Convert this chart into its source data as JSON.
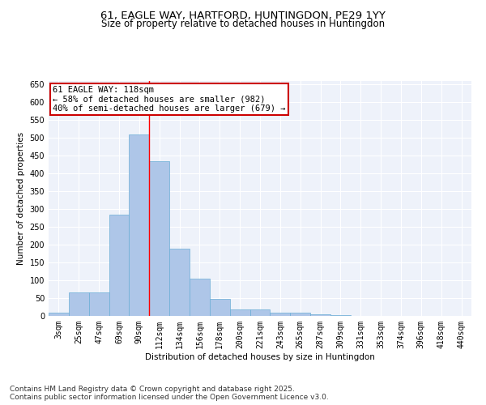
{
  "title": "61, EAGLE WAY, HARTFORD, HUNTINGDON, PE29 1YY",
  "subtitle": "Size of property relative to detached houses in Huntingdon",
  "xlabel": "Distribution of detached houses by size in Huntingdon",
  "ylabel": "Number of detached properties",
  "categories": [
    "3sqm",
    "25sqm",
    "47sqm",
    "69sqm",
    "90sqm",
    "112sqm",
    "134sqm",
    "156sqm",
    "178sqm",
    "200sqm",
    "221sqm",
    "243sqm",
    "265sqm",
    "287sqm",
    "309sqm",
    "331sqm",
    "353sqm",
    "374sqm",
    "396sqm",
    "418sqm",
    "440sqm"
  ],
  "values": [
    8,
    65,
    65,
    285,
    510,
    435,
    190,
    105,
    47,
    18,
    18,
    8,
    8,
    5,
    2,
    1,
    1,
    0,
    0,
    0,
    0
  ],
  "bar_color": "#aec6e8",
  "bar_edge_color": "#6aaed6",
  "red_line_index": 4,
  "annotation_text": "61 EAGLE WAY: 118sqm\n← 58% of detached houses are smaller (982)\n40% of semi-detached houses are larger (679) →",
  "annotation_box_color": "#ffffff",
  "annotation_box_edge": "#cc0000",
  "ylim": [
    0,
    660
  ],
  "yticks": [
    0,
    50,
    100,
    150,
    200,
    250,
    300,
    350,
    400,
    450,
    500,
    550,
    600,
    650
  ],
  "background_color": "#eef2fa",
  "grid_color": "#ffffff",
  "footer_line1": "Contains HM Land Registry data © Crown copyright and database right 2025.",
  "footer_line2": "Contains public sector information licensed under the Open Government Licence v3.0.",
  "title_fontsize": 9.5,
  "subtitle_fontsize": 8.5,
  "axis_label_fontsize": 7.5,
  "tick_fontsize": 7,
  "annotation_fontsize": 7.5,
  "footer_fontsize": 6.5
}
